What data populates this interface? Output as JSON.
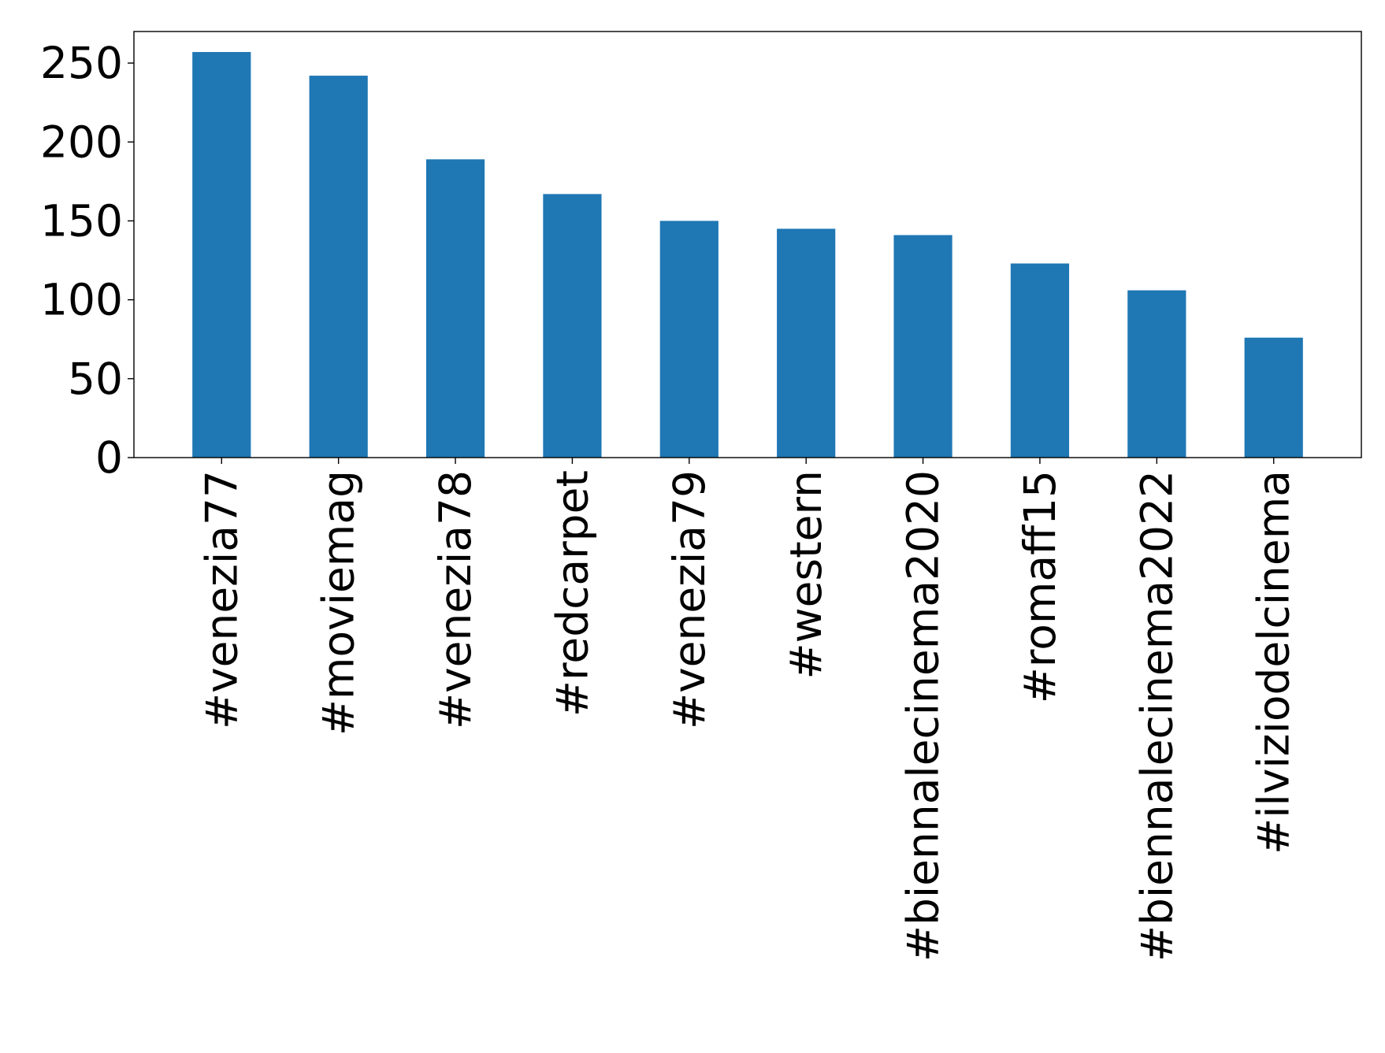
{
  "chart_data": {
    "type": "bar",
    "title": "",
    "xlabel": "",
    "ylabel": "",
    "categories": [
      "#venezia77",
      "#moviemag",
      "#venezia78",
      "#redcarpet",
      "#venezia79",
      "#western",
      "#biennalecinema2020",
      "#romaff15",
      "#biennalecinema2022",
      "#ilviziodelcinema"
    ],
    "values": [
      257,
      242,
      189,
      167,
      150,
      145,
      141,
      123,
      106,
      76
    ],
    "ylim": [
      0,
      270
    ],
    "yticks": [
      0,
      50,
      100,
      150,
      200,
      250
    ],
    "ytick_labels": [
      "0",
      "50",
      "100",
      "150",
      "200",
      "250"
    ],
    "bar_color": "#1f77b4",
    "grid": false,
    "legend": "none"
  }
}
